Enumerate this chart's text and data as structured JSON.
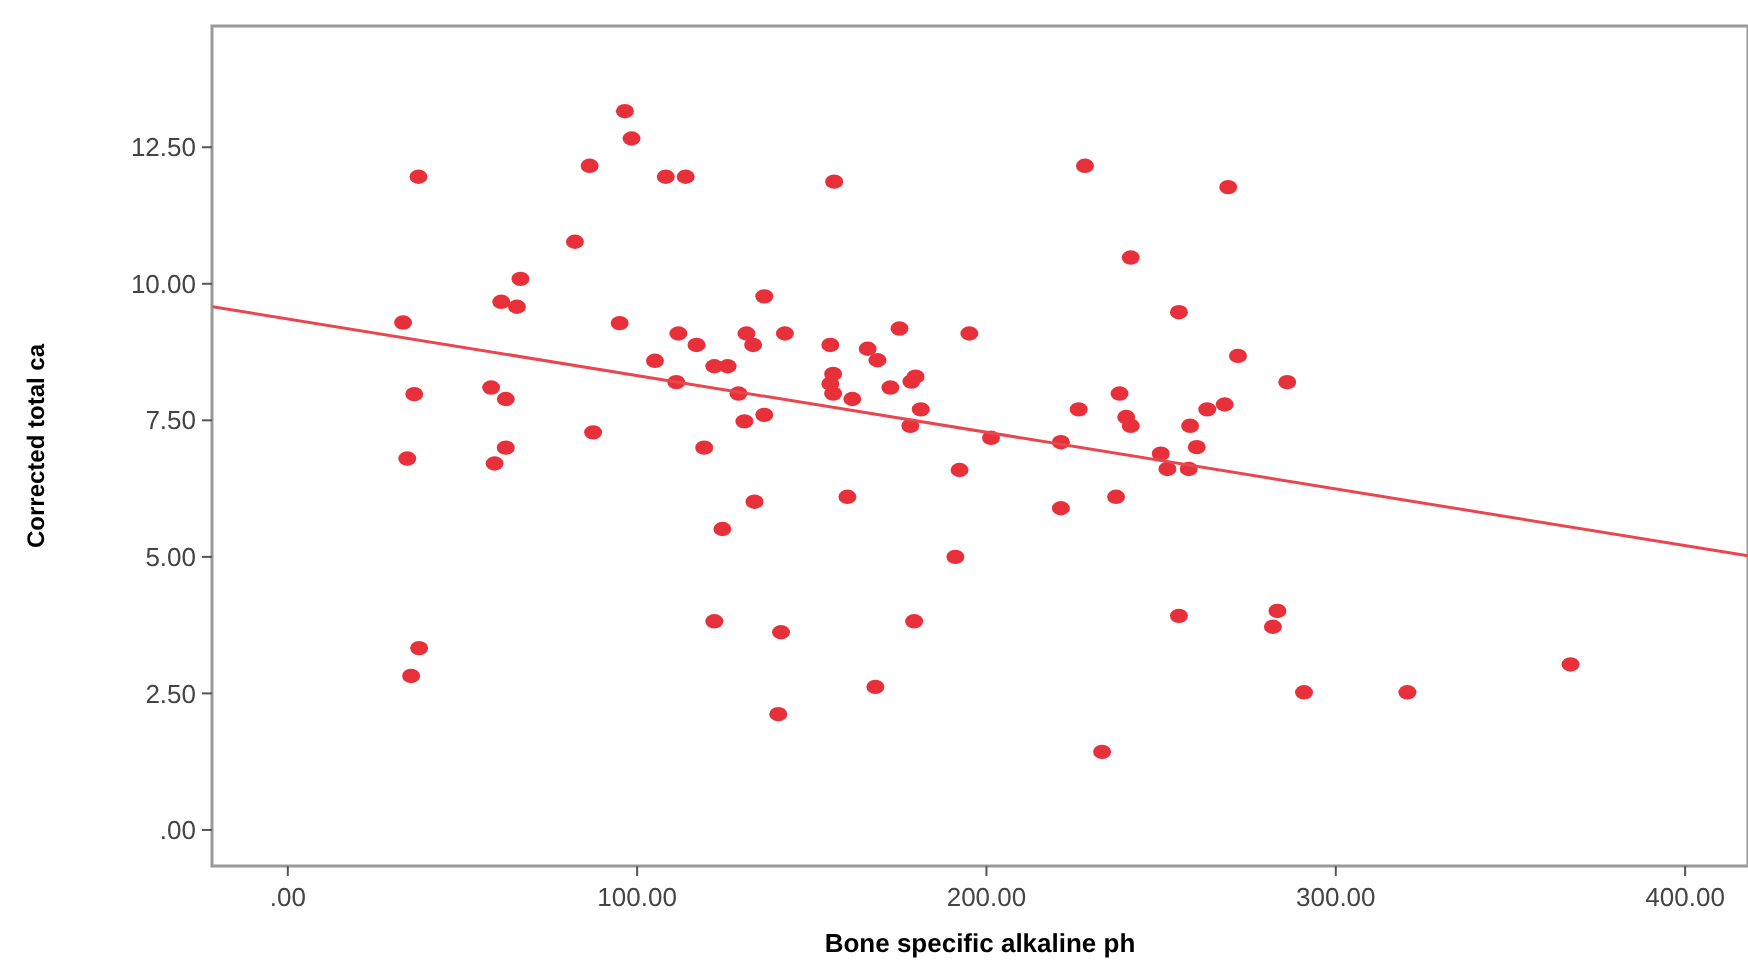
{
  "chart_data": {
    "type": "scatter",
    "xlabel": "Bone specific alkaline ph",
    "ylabel": "Corrected total ca",
    "xlim": [
      -21.7,
      418
    ],
    "ylim": [
      -0.66,
      14.72
    ],
    "xticks": [
      {
        "value": 0,
        "label": ".00"
      },
      {
        "value": 100,
        "label": "100.00"
      },
      {
        "value": 200,
        "label": "200.00"
      },
      {
        "value": 300,
        "label": "300.00"
      },
      {
        "value": 400,
        "label": "400.00"
      }
    ],
    "yticks": [
      {
        "value": 0,
        "label": ".00"
      },
      {
        "value": 2.5,
        "label": "2.50"
      },
      {
        "value": 5,
        "label": "5.00"
      },
      {
        "value": 7.5,
        "label": "7.50"
      },
      {
        "value": 10,
        "label": "10.00"
      },
      {
        "value": 12.5,
        "label": "12.50"
      }
    ],
    "grid": false,
    "marker": "circle",
    "series": [
      {
        "color": "#e8303a",
        "x": [
          33,
          37.4,
          36.2,
          34.2,
          35.3,
          37.6,
          58.2,
          62.4,
          61.1,
          65.6,
          66.6,
          62.4,
          59.2,
          82.2,
          86.4,
          87.4,
          95.0,
          96.5,
          98.4,
          108.2,
          113.9,
          105.1,
          111.8,
          117.0,
          111.2,
          122.1,
          125.9,
          119.2,
          129.0,
          130.7,
          131.3,
          133.2,
          136.4,
          133.6,
          124.4,
          122.1,
          136.4,
          142.3,
          141.2,
          140.4,
          156.4,
          155.3,
          156.1,
          155.3,
          156.1,
          161.6,
          160.2,
          166.0,
          168.8,
          175.1,
          172.5,
          178.5,
          179.7,
          181.2,
          178.2,
          168.2,
          179.3,
          195.1,
          192.3,
          191.1,
          201.3,
          221.3,
          226.4,
          221.3,
          228.2,
          233.1,
          238.1,
          240.0,
          241.3,
          237.1,
          241.3,
          255.1,
          255.1,
          249.9,
          251.8,
          257.9,
          260.2,
          258.3,
          263.2,
          268.2,
          269.2,
          272.0,
          286.1,
          283.3,
          282.0,
          290.9,
          320.5,
          367.2
        ],
        "values": [
          9.29,
          11.96,
          7.98,
          6.8,
          2.82,
          3.33,
          8.1,
          7.89,
          9.67,
          9.58,
          10.09,
          7.0,
          6.71,
          10.77,
          12.16,
          7.28,
          9.28,
          13.16,
          12.66,
          11.96,
          11.96,
          8.59,
          9.09,
          8.88,
          8.2,
          8.49,
          8.49,
          7.0,
          7.99,
          7.48,
          9.09,
          8.88,
          9.77,
          6.01,
          5.51,
          3.82,
          7.6,
          9.09,
          3.62,
          2.12,
          11.87,
          8.88,
          8.35,
          8.17,
          7.99,
          7.89,
          6.1,
          8.81,
          8.6,
          9.18,
          8.1,
          8.21,
          8.3,
          7.7,
          7.4,
          2.62,
          3.82,
          9.09,
          6.59,
          5.0,
          7.18,
          7.1,
          7.7,
          5.89,
          12.16,
          1.43,
          7.99,
          7.56,
          7.4,
          6.1,
          10.48,
          9.48,
          3.92,
          6.89,
          6.61,
          6.61,
          7.01,
          7.4,
          7.7,
          7.79,
          11.77,
          8.68,
          8.2,
          4.01,
          3.72,
          2.52,
          2.52,
          3.03
        ]
      },
      {
        "type": "line",
        "color": "#e8474f",
        "marker": "none",
        "line_style": "solid",
        "x": [
          -21.5,
          418
        ],
        "values": [
          9.58,
          5.02
        ]
      }
    ]
  }
}
